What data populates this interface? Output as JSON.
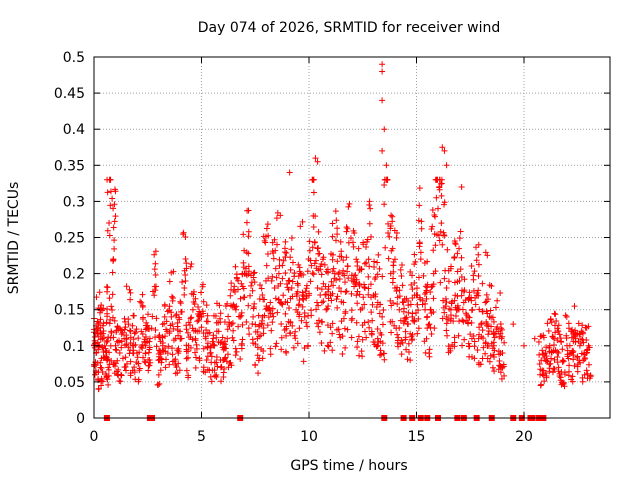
{
  "chart_data": {
    "type": "scatter",
    "title": "Day 074 of 2026, SRMTID for receiver wind",
    "xlabel": "GPS time / hours",
    "ylabel": "SRMTID / TECUs",
    "xlim": [
      0,
      24
    ],
    "ylim": [
      0,
      0.5
    ],
    "x_ticks": [
      0,
      5,
      10,
      15,
      20
    ],
    "x_tick_labels": [
      "0",
      "5",
      "10",
      "15",
      "20"
    ],
    "y_ticks": [
      0,
      0.05,
      0.1,
      0.15,
      0.2,
      0.25,
      0.3,
      0.35,
      0.4,
      0.45,
      0.5
    ],
    "y_tick_labels": [
      "0",
      "0.05",
      "0.1",
      "0.15",
      "0.2",
      "0.25",
      "0.3",
      "0.35",
      "0.4",
      "0.45",
      "0.5"
    ],
    "grid": true,
    "marker": "+",
    "color": "#ff0000",
    "series": [
      {
        "name": "SRMTID",
        "x": [
          0.0,
          0.1,
          0.2,
          0.3,
          0.4,
          0.5,
          0.6,
          0.7,
          0.8,
          0.9,
          1.0,
          1.2,
          1.4,
          1.6,
          1.8,
          2.0,
          2.2,
          2.4,
          2.6,
          2.8,
          3.0,
          3.2,
          3.4,
          3.6,
          3.8,
          4.0,
          4.2,
          4.4,
          4.6,
          4.8,
          5.0,
          5.2,
          5.4,
          5.6,
          5.8,
          6.0,
          6.2,
          6.4,
          6.6,
          6.8,
          7.0,
          7.2,
          7.4,
          7.6,
          7.8,
          8.0,
          8.2,
          8.4,
          8.6,
          8.8,
          9.0,
          9.2,
          9.4,
          9.6,
          9.8,
          10.0,
          10.2,
          10.4,
          10.6,
          10.8,
          11.0,
          11.2,
          11.4,
          11.6,
          11.8,
          12.0,
          12.2,
          12.4,
          12.6,
          12.8,
          13.0,
          13.2,
          13.4,
          13.6,
          13.8,
          14.0,
          14.2,
          14.4,
          14.6,
          14.8,
          15.0,
          15.2,
          15.4,
          15.6,
          15.8,
          16.0,
          16.2,
          16.4,
          16.6,
          16.8,
          17.0,
          17.2,
          17.4,
          17.6,
          17.8,
          18.0,
          18.2,
          18.4,
          18.6,
          18.8,
          19.0,
          19.5,
          20.0,
          20.5,
          20.8,
          21.0,
          21.2,
          21.4,
          21.6,
          21.8,
          22.0,
          22.2,
          22.4,
          22.6,
          22.8,
          23.0
        ],
        "y": [
          0.1,
          0.09,
          0.13,
          0.07,
          0.11,
          0.1,
          0.08,
          0.27,
          0.12,
          0.22,
          0.1,
          0.09,
          0.11,
          0.13,
          0.1,
          0.09,
          0.12,
          0.1,
          0.11,
          0.17,
          0.08,
          0.1,
          0.12,
          0.14,
          0.11,
          0.12,
          0.18,
          0.1,
          0.15,
          0.12,
          0.14,
          0.11,
          0.09,
          0.1,
          0.12,
          0.08,
          0.11,
          0.13,
          0.15,
          0.14,
          0.2,
          0.21,
          0.14,
          0.11,
          0.13,
          0.19,
          0.16,
          0.18,
          0.2,
          0.17,
          0.16,
          0.18,
          0.15,
          0.2,
          0.14,
          0.17,
          0.28,
          0.18,
          0.16,
          0.15,
          0.17,
          0.2,
          0.18,
          0.16,
          0.21,
          0.19,
          0.17,
          0.15,
          0.18,
          0.21,
          0.17,
          0.16,
          0.14,
          0.35,
          0.2,
          0.18,
          0.15,
          0.16,
          0.13,
          0.14,
          0.17,
          0.22,
          0.15,
          0.13,
          0.2,
          0.29,
          0.24,
          0.18,
          0.15,
          0.17,
          0.19,
          0.16,
          0.14,
          0.15,
          0.17,
          0.13,
          0.16,
          0.14,
          0.1,
          0.12,
          0.09,
          0.13,
          0.1,
          0.11,
          0.08,
          0.09,
          0.1,
          0.11,
          0.09,
          0.08,
          0.1,
          0.09,
          0.11,
          0.1,
          0.09,
          0.1
        ]
      }
    ],
    "peaks": [
      {
        "x": 13.4,
        "y": 0.49
      },
      {
        "x": 13.4,
        "y": 0.48
      },
      {
        "x": 13.4,
        "y": 0.44
      },
      {
        "x": 13.5,
        "y": 0.4
      },
      {
        "x": 13.4,
        "y": 0.37
      },
      {
        "x": 16.2,
        "y": 0.375
      },
      {
        "x": 16.3,
        "y": 0.37
      },
      {
        "x": 10.3,
        "y": 0.36
      },
      {
        "x": 10.4,
        "y": 0.355
      },
      {
        "x": 9.1,
        "y": 0.34
      },
      {
        "x": 16.4,
        "y": 0.35
      },
      {
        "x": 17.1,
        "y": 0.32
      }
    ],
    "zeros_x": [
      0.6,
      2.6,
      2.7,
      6.8,
      13.5,
      14.4,
      14.8,
      15.2,
      15.5,
      16.0,
      16.9,
      17.2,
      17.8,
      18.5,
      19.5,
      19.9,
      20.3,
      20.4,
      20.7,
      20.9
    ]
  }
}
